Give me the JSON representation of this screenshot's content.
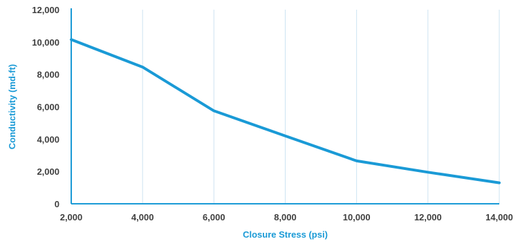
{
  "chart_data": {
    "type": "line",
    "title": "",
    "xlabel": "Closure Stress (psi)",
    "ylabel": "Conductivity (md-ft)",
    "xlim": [
      2000,
      14000
    ],
    "ylim": [
      0,
      12000
    ],
    "x_ticks": [
      2000,
      4000,
      6000,
      8000,
      10000,
      12000,
      14000
    ],
    "y_ticks": [
      0,
      2000,
      4000,
      6000,
      8000,
      10000,
      12000
    ],
    "x_tick_labels": [
      "2,000",
      "4,000",
      "6,000",
      "8,000",
      "10,000",
      "12,000",
      "14,000"
    ],
    "y_tick_labels": [
      "0",
      "2,000",
      "4,000",
      "6,000",
      "8,000",
      "10,000",
      "12,000"
    ],
    "grid": {
      "vertical": true,
      "horizontal": false
    },
    "legend": "none",
    "series": [
      {
        "x": [
          2000,
          4000,
          6000,
          8000,
          10000,
          12000,
          14000
        ],
        "y": [
          10150,
          8450,
          5750,
          4200,
          2650,
          1950,
          1300
        ]
      }
    ]
  },
  "colors": {
    "line": "#1a9ad6",
    "axis_title": "#1a9ad6",
    "axis": "#1a9ad6",
    "grid": "#cde3f2",
    "tick_label": "#404040"
  }
}
